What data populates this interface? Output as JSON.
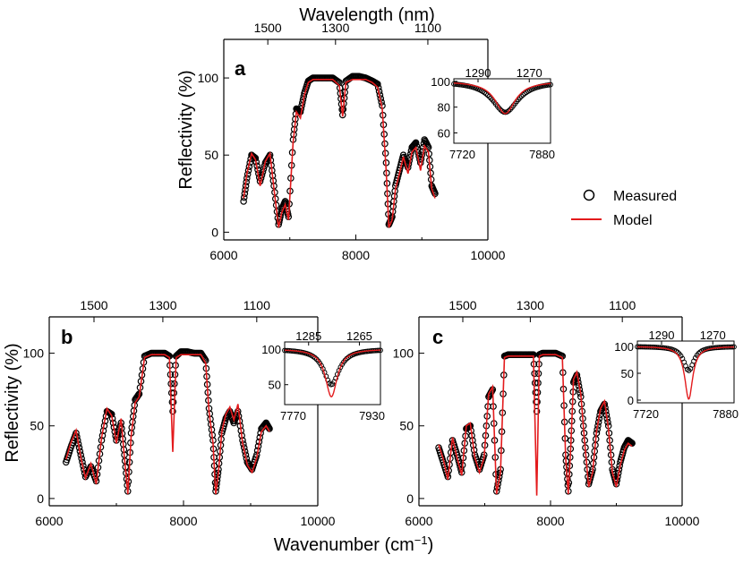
{
  "figure": {
    "top_axis_title": "Wavelength (nm)",
    "x_axis_title": "Wavenumber (cm",
    "x_axis_title_sup": "−1",
    "x_axis_title_end": ")",
    "y_axis_title": "Reflectivity (%)"
  },
  "legend": {
    "measured_label": "Measured",
    "model_label": "Model",
    "measured_marker": "circle-marker-icon",
    "model_color": "#e31a1c",
    "measured_color": "#000000"
  },
  "chart_data": [
    {
      "panel": "a",
      "type": "line",
      "xlim": [
        6000,
        10000
      ],
      "ylim": [
        -5,
        125
      ],
      "xticks": [
        6000,
        8000,
        10000
      ],
      "xtick_labels": [
        "6000",
        "8000",
        "10000"
      ],
      "yticks": [
        0,
        50,
        100
      ],
      "ytick_labels": [
        "0",
        "50",
        "100"
      ],
      "top_ticks": [
        1500,
        1300,
        1100
      ],
      "top_tick_labels": [
        "1500",
        "1300",
        "1100"
      ],
      "series": [
        {
          "name": "Measured",
          "x": [
            6300,
            6350,
            6420,
            6480,
            6550,
            6630,
            6700,
            6760,
            6830,
            6880,
            6930,
            6980,
            7050,
            7100,
            7160,
            7220,
            7280,
            7350,
            7450,
            7550,
            7650,
            7750,
            7800,
            7850,
            7950,
            8050,
            8150,
            8250,
            8330,
            8400,
            8460,
            8500,
            8550,
            8600,
            8660,
            8720,
            8790,
            8850,
            8910,
            8980,
            9040,
            9100,
            9150,
            9200
          ],
          "y": [
            20,
            35,
            50,
            48,
            33,
            45,
            50,
            30,
            5,
            15,
            20,
            10,
            60,
            80,
            78,
            90,
            98,
            100,
            100,
            100,
            100,
            97,
            76,
            98,
            101,
            101,
            100,
            98,
            96,
            82,
            45,
            5,
            10,
            30,
            40,
            50,
            42,
            55,
            58,
            45,
            60,
            55,
            30,
            25
          ]
        },
        {
          "name": "Model",
          "x": [
            6300,
            6350,
            6420,
            6480,
            6550,
            6630,
            6700,
            6760,
            6830,
            6880,
            6930,
            6980,
            7050,
            7100,
            7160,
            7220,
            7280,
            7350,
            7450,
            7550,
            7650,
            7750,
            7800,
            7850,
            7950,
            8050,
            8150,
            8250,
            8330,
            8400,
            8460,
            8500,
            8550,
            8600,
            8660,
            8720,
            8790,
            8850,
            8910,
            8980,
            9040,
            9100,
            9150,
            9200
          ],
          "y": [
            22,
            38,
            51,
            47,
            30,
            46,
            51,
            28,
            3,
            13,
            18,
            8,
            58,
            78,
            74,
            89,
            97,
            99,
            99,
            99,
            99,
            95,
            75,
            97,
            99,
            99,
            99,
            97,
            94,
            80,
            40,
            3,
            8,
            28,
            38,
            49,
            38,
            52,
            55,
            40,
            56,
            52,
            28,
            22
          ]
        }
      ],
      "inset": {
        "xlim": [
          7720,
          7880
        ],
        "ylim": [
          52,
          102
        ],
        "xticks": [
          7720,
          7880
        ],
        "xtick_labels": [
          "7720",
          "7880"
        ],
        "yticks": [
          60,
          80,
          100
        ],
        "ytick_labels": [
          "60",
          "80",
          "100"
        ],
        "top_tick_labels": [
          "1290",
          "1270"
        ],
        "dip_center": 7805,
        "dip_min_measured": 76,
        "dip_min_model": 75,
        "dip_width": 20
      }
    },
    {
      "panel": "b",
      "type": "line",
      "xlim": [
        6000,
        10000
      ],
      "ylim": [
        -5,
        125
      ],
      "xticks": [
        6000,
        8000,
        10000
      ],
      "xtick_labels": [
        "6000",
        "8000",
        "10000"
      ],
      "yticks": [
        0,
        50,
        100
      ],
      "ytick_labels": [
        "0",
        "50",
        "100"
      ],
      "top_ticks": [
        1500,
        1300,
        1100
      ],
      "top_tick_labels": [
        "1500",
        "1300",
        "1100"
      ],
      "series": [
        {
          "name": "Measured",
          "x": [
            6250,
            6320,
            6400,
            6470,
            6540,
            6620,
            6700,
            6780,
            6860,
            6930,
            7000,
            7070,
            7120,
            7170,
            7220,
            7280,
            7340,
            7420,
            7520,
            7620,
            7720,
            7790,
            7840,
            7890,
            7960,
            8060,
            8160,
            8260,
            8330,
            8380,
            8440,
            8480,
            8520,
            8570,
            8630,
            8690,
            8750,
            8810,
            8880,
            8950,
            9020,
            9090,
            9160,
            9230,
            9280
          ],
          "y": [
            25,
            35,
            45,
            30,
            15,
            22,
            12,
            40,
            60,
            58,
            40,
            52,
            30,
            5,
            45,
            68,
            72,
            98,
            100,
            100,
            100,
            98,
            60,
            98,
            101,
            101,
            100,
            100,
            95,
            62,
            40,
            5,
            20,
            45,
            55,
            60,
            52,
            60,
            40,
            25,
            20,
            30,
            48,
            52,
            48
          ]
        },
        {
          "name": "Model",
          "x": [
            6250,
            6320,
            6400,
            6470,
            6540,
            6620,
            6700,
            6780,
            6860,
            6930,
            7000,
            7070,
            7120,
            7170,
            7220,
            7280,
            7340,
            7420,
            7520,
            7620,
            7720,
            7790,
            7840,
            7890,
            7960,
            8060,
            8160,
            8260,
            8330,
            8380,
            8440,
            8480,
            8520,
            8570,
            8630,
            8690,
            8750,
            8810,
            8880,
            8950,
            9020,
            9090,
            9160,
            9230,
            9280
          ],
          "y": [
            27,
            38,
            47,
            28,
            14,
            24,
            10,
            42,
            62,
            57,
            38,
            55,
            28,
            3,
            43,
            66,
            70,
            97,
            99,
            99,
            99,
            97,
            32,
            97,
            99,
            99,
            99,
            99,
            93,
            60,
            38,
            3,
            18,
            46,
            58,
            63,
            54,
            65,
            38,
            23,
            18,
            28,
            46,
            50,
            46
          ]
        }
      ],
      "inset": {
        "xlim": [
          7770,
          7930
        ],
        "ylim": [
          22,
          110
        ],
        "xticks": [
          7770,
          7930
        ],
        "xtick_labels": [
          "7770",
          "7930"
        ],
        "yticks": [
          50,
          100
        ],
        "ytick_labels": [
          "50",
          "100"
        ],
        "top_tick_labels": [
          "1285",
          "1265"
        ],
        "dip_center": 7848,
        "dip_min_measured": 50,
        "dip_min_model": 33,
        "dip_width": 12
      }
    },
    {
      "panel": "c",
      "type": "line",
      "xlim": [
        6000,
        10000
      ],
      "ylim": [
        -5,
        125
      ],
      "xticks": [
        6000,
        8000,
        10000
      ],
      "xtick_labels": [
        "6000",
        "8000",
        "10000"
      ],
      "yticks": [
        0,
        50,
        100
      ],
      "ytick_labels": [
        "0",
        "50",
        "100"
      ],
      "top_ticks": [
        1500,
        1300,
        1100
      ],
      "top_tick_labels": [
        "1500",
        "1300",
        "1100"
      ],
      "series": [
        {
          "name": "Measured",
          "x": [
            6300,
            6370,
            6440,
            6510,
            6580,
            6650,
            6720,
            6780,
            6850,
            6920,
            6990,
            7060,
            7120,
            7180,
            7240,
            7300,
            7360,
            7460,
            7560,
            7660,
            7740,
            7790,
            7830,
            7880,
            7980,
            8080,
            8180,
            8230,
            8270,
            8310,
            8350,
            8400,
            8460,
            8520,
            8580,
            8640,
            8700,
            8760,
            8820,
            8880,
            8940,
            9000,
            9060,
            9120,
            9180,
            9240
          ],
          "y": [
            35,
            25,
            15,
            40,
            30,
            18,
            48,
            50,
            30,
            20,
            30,
            70,
            75,
            5,
            20,
            98,
            99,
            99,
            99,
            99,
            99,
            60,
            99,
            100,
            100,
            100,
            98,
            30,
            5,
            40,
            80,
            85,
            70,
            40,
            10,
            20,
            45,
            60,
            65,
            50,
            20,
            10,
            25,
            35,
            40,
            38
          ]
        },
        {
          "name": "Model",
          "x": [
            6300,
            6370,
            6440,
            6510,
            6580,
            6650,
            6720,
            6780,
            6850,
            6920,
            6990,
            7060,
            7120,
            7180,
            7240,
            7300,
            7360,
            7460,
            7560,
            7660,
            7740,
            7790,
            7830,
            7880,
            7980,
            8080,
            8180,
            8230,
            8270,
            8310,
            8350,
            8400,
            8460,
            8520,
            8580,
            8640,
            8700,
            8760,
            8820,
            8880,
            8940,
            9000,
            9060,
            9120,
            9180,
            9240
          ],
          "y": [
            37,
            27,
            13,
            42,
            28,
            16,
            50,
            52,
            28,
            18,
            28,
            72,
            77,
            3,
            18,
            97,
            98,
            98,
            98,
            98,
            98,
            2,
            98,
            99,
            99,
            99,
            97,
            28,
            3,
            38,
            82,
            87,
            72,
            38,
            8,
            18,
            47,
            62,
            67,
            48,
            18,
            8,
            23,
            33,
            38,
            36
          ]
        }
      ],
      "inset": {
        "xlim": [
          7720,
          7880
        ],
        "ylim": [
          -5,
          110
        ],
        "xticks": [
          7720,
          7880
        ],
        "xtick_labels": [
          "7720",
          "7880"
        ],
        "yticks": [
          0,
          50,
          100
        ],
        "ytick_labels": [
          "0",
          "50",
          "100"
        ],
        "top_tick_labels": [
          "1290",
          "1270"
        ],
        "dip_center": 7805,
        "dip_min_measured": 55,
        "dip_min_model": 2,
        "dip_width": 8
      }
    }
  ]
}
